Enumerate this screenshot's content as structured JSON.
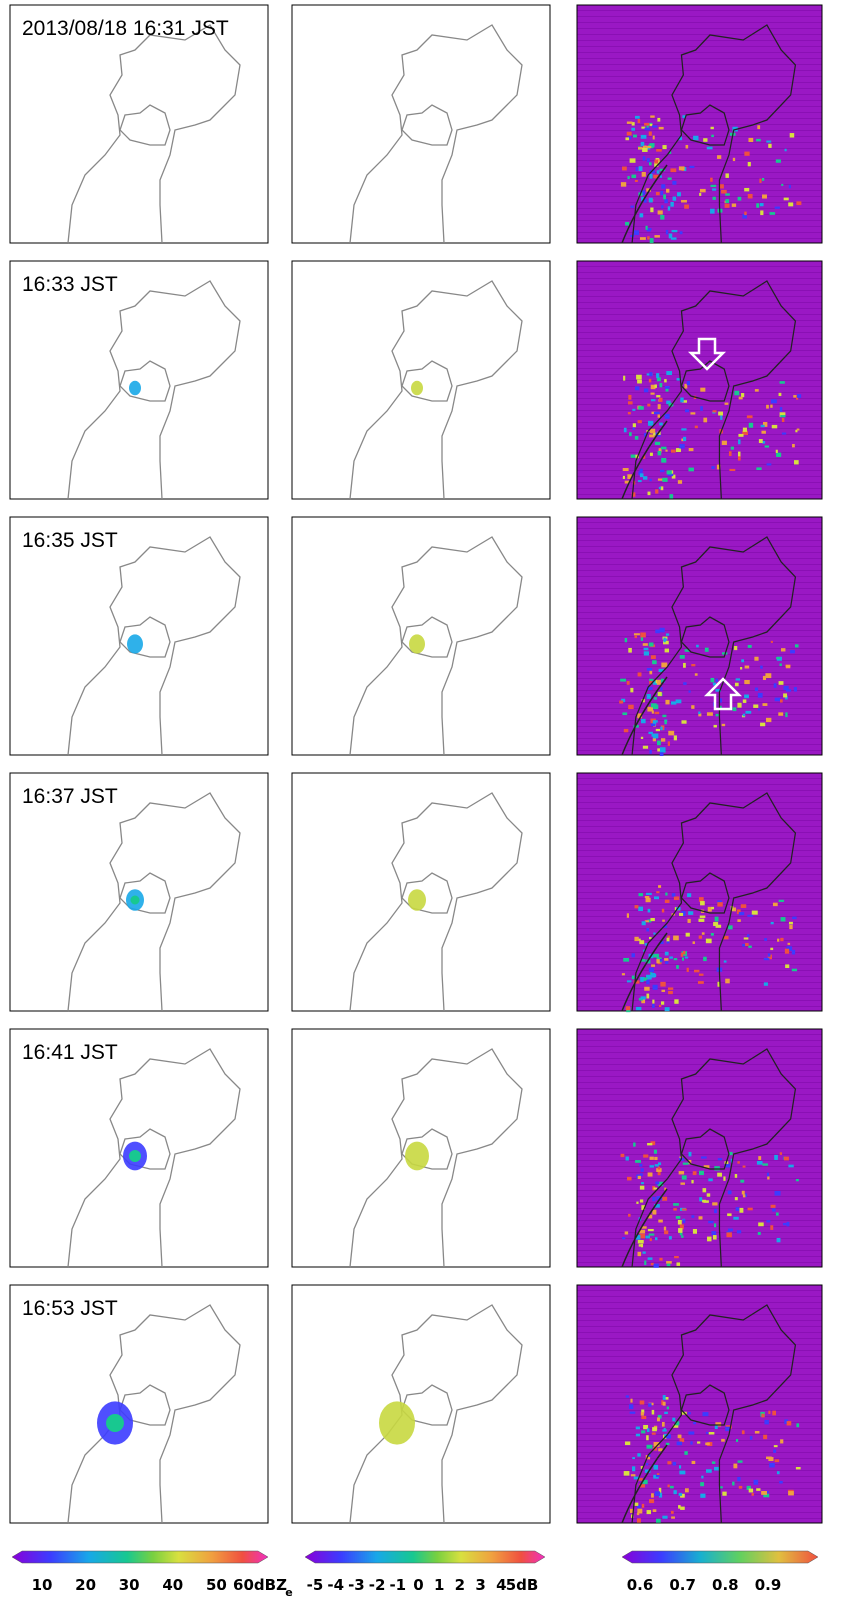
{
  "panels": [
    {
      "label": "2013/08/18 16:31 JST"
    },
    {
      "label": "16:33 JST"
    },
    {
      "label": "16:35 JST"
    },
    {
      "label": "16:37 JST"
    },
    {
      "label": "16:41 JST"
    },
    {
      "label": "16:53 JST"
    }
  ],
  "colorbars": [
    {
      "ticks": [
        "10",
        "20",
        "30",
        "40",
        "50",
        "60dBZ"
      ],
      "subscript": "e"
    },
    {
      "ticks": [
        "-5",
        "-4",
        "-3",
        "-2",
        "-1",
        "0",
        "1",
        "2",
        "3",
        "4",
        "5dB"
      ]
    },
    {
      "ticks": [
        "0.6",
        "0.7",
        "0.8",
        "0.9"
      ]
    }
  ]
}
